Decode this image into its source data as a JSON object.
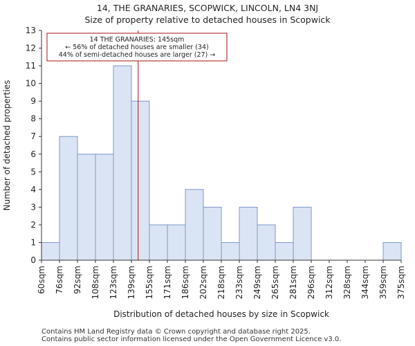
{
  "title_line1": "14, THE GRANARIES, SCOPWICK, LINCOLN, LN4 3NJ",
  "title_line2": "Size of property relative to detached houses in Scopwick",
  "footer_line1": "Contains HM Land Registry data © Crown copyright and database right 2025.",
  "footer_line2": "Contains public sector information licensed under the Open Government Licence v3.0.",
  "colors": {
    "bar_fill": "#dbe4f4",
    "bar_stroke": "#7b97c9",
    "marker": "#aa1111",
    "axis": "#333333"
  },
  "chart_data": {
    "type": "bar",
    "xlabel": "Distribution of detached houses by size in Scopwick",
    "ylabel": "Number of detached properties",
    "bin_edges": [
      60,
      76,
      92,
      108,
      123,
      139,
      155,
      171,
      186,
      202,
      218,
      233,
      249,
      265,
      281,
      296,
      312,
      328,
      344,
      359,
      375
    ],
    "tick_labels": [
      "60sqm",
      "76sqm",
      "92sqm",
      "108sqm",
      "123sqm",
      "139sqm",
      "155sqm",
      "171sqm",
      "186sqm",
      "202sqm",
      "218sqm",
      "233sqm",
      "249sqm",
      "265sqm",
      "281sqm",
      "296sqm",
      "312sqm",
      "328sqm",
      "344sqm",
      "359sqm",
      "375sqm"
    ],
    "values": [
      1,
      7,
      6,
      6,
      11,
      9,
      2,
      2,
      4,
      3,
      1,
      3,
      2,
      1,
      3,
      0,
      0,
      0,
      0,
      1
    ],
    "ylim": [
      0,
      13
    ],
    "yticks": [
      0,
      1,
      2,
      3,
      4,
      5,
      6,
      7,
      8,
      9,
      10,
      11,
      12,
      13
    ],
    "marker_value": 145,
    "annotation": {
      "line1": "14 THE GRANARIES: 145sqm",
      "line2": "← 56% of detached houses are smaller (34)",
      "line3": "44% of semi-detached houses are larger (27) →"
    }
  }
}
